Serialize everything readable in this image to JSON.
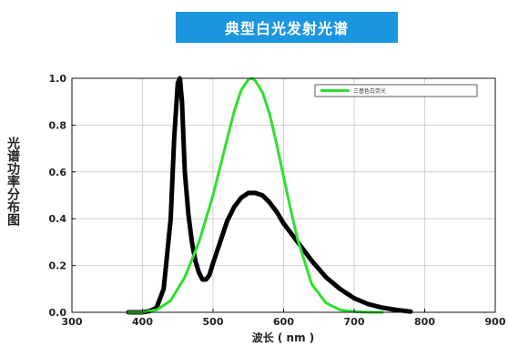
{
  "chart_data": {
    "type": "line",
    "title": "典型白光发射光谱",
    "xlabel": "波长 ( nm )",
    "ylabel": "光谱功率分布图",
    "xlim": [
      300,
      900
    ],
    "ylim": [
      0,
      1.0
    ],
    "xticks": [
      300,
      400,
      500,
      600,
      700,
      800,
      900
    ],
    "yticks": [
      0.0,
      0.2,
      0.4,
      0.6,
      0.8,
      1.0
    ],
    "grid": true,
    "legend_position": "top-right",
    "series": [
      {
        "name": "",
        "color": "#000000",
        "x": [
          380,
          400,
          410,
          420,
          430,
          440,
          445,
          450,
          453,
          456,
          460,
          465,
          470,
          475,
          480,
          485,
          490,
          495,
          500,
          510,
          520,
          530,
          540,
          550,
          560,
          570,
          580,
          590,
          600,
          620,
          640,
          660,
          680,
          700,
          720,
          740,
          760,
          780
        ],
        "y": [
          0.0,
          0.0,
          0.005,
          0.02,
          0.1,
          0.4,
          0.75,
          0.98,
          1.0,
          0.9,
          0.6,
          0.42,
          0.3,
          0.22,
          0.17,
          0.14,
          0.14,
          0.16,
          0.21,
          0.3,
          0.39,
          0.45,
          0.49,
          0.51,
          0.51,
          0.5,
          0.47,
          0.43,
          0.38,
          0.3,
          0.22,
          0.15,
          0.1,
          0.06,
          0.035,
          0.02,
          0.01,
          0.003
        ]
      },
      {
        "name": "三基色白荧光",
        "color": "#2de02d",
        "x": [
          380,
          400,
          420,
          440,
          460,
          480,
          500,
          520,
          530,
          540,
          550,
          555,
          560,
          570,
          580,
          590,
          600,
          610,
          620,
          640,
          660,
          680,
          700,
          720,
          740
        ],
        "y": [
          0.0,
          0.0,
          0.01,
          0.05,
          0.15,
          0.3,
          0.5,
          0.74,
          0.86,
          0.95,
          0.995,
          1.0,
          0.99,
          0.94,
          0.85,
          0.72,
          0.58,
          0.44,
          0.31,
          0.12,
          0.04,
          0.01,
          0.003,
          0.0,
          0.0
        ]
      }
    ]
  }
}
